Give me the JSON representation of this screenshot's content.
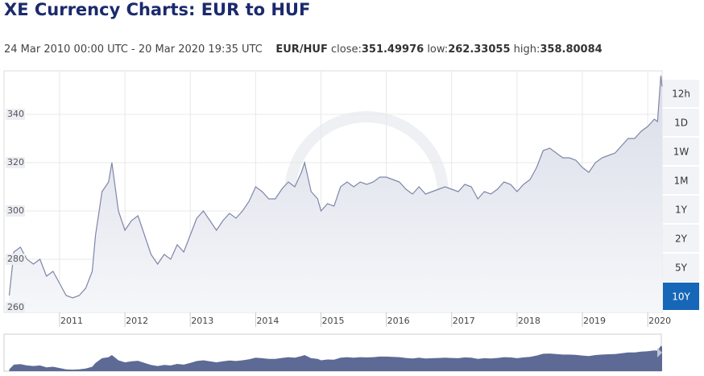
{
  "header": {
    "title": "XE Currency Charts: EUR to HUF",
    "range": "24 Mar 2010 00:00 UTC - 20 Mar 2020 19:35 UTC",
    "pair": "EUR/HUF",
    "stats": [
      {
        "label": "close:",
        "value": 351.49976
      },
      {
        "label": "low:",
        "value": 262.33055
      },
      {
        "label": "high:",
        "value": 358.80084
      }
    ]
  },
  "range_buttons": {
    "labels": [
      "12h",
      "1D",
      "1W",
      "1M",
      "1Y",
      "2Y",
      "5Y",
      "10Y"
    ],
    "selected": "10Y"
  },
  "chart_data": {
    "type": "area",
    "color": "#7f86a8",
    "navigator_color": "#5d6a96",
    "xlim": [
      2010.15,
      2020.22
    ],
    "xticks": [
      2011,
      2012,
      2013,
      2014,
      2015,
      2016,
      2017,
      2018,
      2019,
      2020
    ],
    "ylim": [
      258,
      358
    ],
    "yticks": [
      260,
      280,
      300,
      320,
      340
    ],
    "grid": true,
    "x": [
      2010.23,
      2010.3,
      2010.4,
      2010.5,
      2010.6,
      2010.7,
      2010.8,
      2010.9,
      2011.0,
      2011.1,
      2011.2,
      2011.3,
      2011.4,
      2011.5,
      2011.55,
      2011.65,
      2011.75,
      2011.8,
      2011.9,
      2012.0,
      2012.1,
      2012.2,
      2012.3,
      2012.4,
      2012.5,
      2012.6,
      2012.7,
      2012.8,
      2012.9,
      2013.0,
      2013.1,
      2013.2,
      2013.3,
      2013.4,
      2013.5,
      2013.6,
      2013.7,
      2013.8,
      2013.9,
      2014.0,
      2014.1,
      2014.2,
      2014.3,
      2014.4,
      2014.5,
      2014.6,
      2014.7,
      2014.75,
      2014.85,
      2014.95,
      2015.0,
      2015.1,
      2015.2,
      2015.3,
      2015.4,
      2015.5,
      2015.6,
      2015.7,
      2015.8,
      2015.9,
      2016.0,
      2016.1,
      2016.2,
      2016.3,
      2016.4,
      2016.5,
      2016.6,
      2016.7,
      2016.8,
      2016.9,
      2017.0,
      2017.1,
      2017.2,
      2017.3,
      2017.4,
      2017.5,
      2017.6,
      2017.7,
      2017.8,
      2017.9,
      2018.0,
      2018.1,
      2018.2,
      2018.3,
      2018.4,
      2018.5,
      2018.6,
      2018.7,
      2018.8,
      2018.9,
      2019.0,
      2019.1,
      2019.2,
      2019.3,
      2019.4,
      2019.5,
      2019.6,
      2019.7,
      2019.8,
      2019.9,
      2020.0,
      2020.1,
      2020.15,
      2020.2,
      2020.22
    ],
    "values": [
      265,
      283,
      285,
      280,
      278,
      280,
      273,
      275,
      270,
      265,
      264,
      265,
      268,
      275,
      290,
      308,
      312,
      320,
      300,
      292,
      296,
      298,
      290,
      282,
      278,
      282,
      280,
      286,
      283,
      290,
      297,
      300,
      296,
      292,
      296,
      299,
      297,
      300,
      304,
      310,
      308,
      305,
      305,
      309,
      312,
      310,
      316,
      320,
      308,
      305,
      300,
      303,
      302,
      310,
      312,
      310,
      312,
      311,
      312,
      314,
      314,
      313,
      312,
      309,
      307,
      310,
      307,
      308,
      309,
      310,
      309,
      308,
      311,
      310,
      305,
      308,
      307,
      309,
      312,
      311,
      308,
      311,
      313,
      318,
      325,
      326,
      324,
      322,
      322,
      321,
      318,
      316,
      320,
      322,
      323,
      324,
      327,
      330,
      330,
      333,
      335,
      338,
      337,
      356,
      351.5
    ]
  }
}
